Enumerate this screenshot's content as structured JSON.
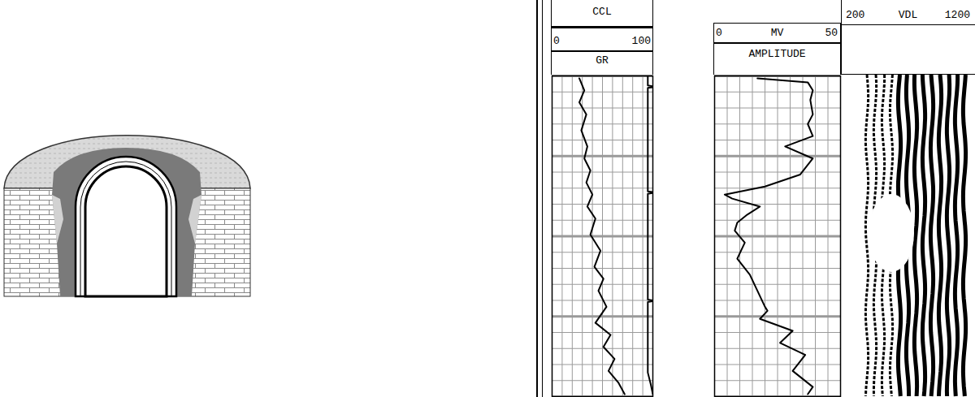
{
  "chart_data": [
    {
      "type": "line",
      "xlim": [
        0,
        100
      ],
      "xticks": [
        0,
        10,
        20,
        30,
        40,
        50,
        60,
        70,
        80,
        90,
        100
      ],
      "ylim": [
        0,
        400
      ],
      "yticks": [
        0,
        20,
        40,
        60,
        80,
        100,
        120,
        140,
        160,
        180,
        200,
        220,
        240,
        260,
        280,
        300,
        320,
        340,
        360,
        380,
        400
      ],
      "grid": true,
      "tick_labels": false,
      "series": [
        {
          "name": "CCL",
          "color": "#000000",
          "depth": [
            0,
            12,
            13,
            14,
            15,
            144,
            145,
            146,
            147,
            279,
            280,
            281,
            282,
            370,
            385,
            397
          ],
          "values": [
            95,
            95,
            100,
            100,
            95,
            95,
            100,
            100,
            95,
            95,
            100,
            100,
            95,
            95,
            98,
            100
          ]
        },
        {
          "name": "GR",
          "color": "#000000",
          "depth": [
            3,
            18,
            33,
            48,
            68,
            88,
            103,
            118,
            133,
            148,
            163,
            178,
            198,
            218,
            238,
            253,
            268,
            288,
            308,
            323,
            338,
            353,
            368,
            383,
            397
          ],
          "values": [
            27,
            32,
            27,
            34,
            29,
            35,
            32,
            38,
            34,
            40,
            35,
            43,
            38,
            48,
            42,
            51,
            46,
            54,
            43,
            58,
            51,
            62,
            56,
            66,
            72
          ]
        }
      ]
    },
    {
      "type": "line",
      "title": "AMPLITUDE",
      "unit": "MV",
      "xlim": [
        0,
        50
      ],
      "xticks": [
        0,
        5,
        10,
        15,
        20,
        25,
        30,
        35,
        40,
        45,
        50
      ],
      "ylim": [
        0,
        400
      ],
      "yticks": [
        0,
        20,
        40,
        60,
        80,
        100,
        120,
        140,
        160,
        180,
        200,
        220,
        240,
        260,
        280,
        300,
        320,
        340,
        360,
        380,
        400
      ],
      "grid": true,
      "tick_labels": false,
      "series": [
        {
          "color": "#000000",
          "depth": [
            3,
            8,
            18,
            30,
            48,
            60,
            75,
            88,
            103,
            123,
            138,
            148,
            153,
            163,
            173,
            183,
            193,
            208,
            228,
            248,
            268,
            288,
            293,
            303,
            318,
            333,
            348,
            368,
            388,
            397
          ],
          "values": [
            17,
            37,
            39,
            38,
            39,
            37,
            39,
            28,
            39,
            34,
            20,
            4,
            7,
            18,
            13,
            9,
            8,
            12,
            9,
            14,
            17,
            20,
            21,
            18,
            31,
            26,
            36,
            31,
            39,
            37
          ]
        }
      ]
    },
    {
      "type": "vdl",
      "title": "VDL",
      "xlim": [
        200,
        1200
      ]
    }
  ]
}
